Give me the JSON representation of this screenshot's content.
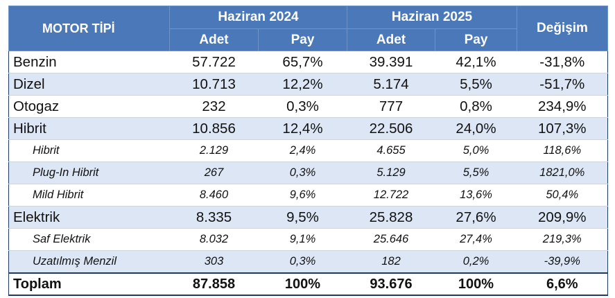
{
  "header": {
    "motor_label": "MOTOR TİPİ",
    "period_2024": "Haziran 2024",
    "period_2025": "Haziran 2025",
    "change_label": "Değişim",
    "adet_label": "Adet",
    "pay_label": "Pay"
  },
  "rows": [
    {
      "label": "Benzin",
      "a2024": "57.722",
      "p2024": "65,7%",
      "a2025": "39.391",
      "p2025": "42,1%",
      "change": "-31,8%"
    },
    {
      "label": "Dizel",
      "a2024": "10.713",
      "p2024": "12,2%",
      "a2025": "5.174",
      "p2025": "5,5%",
      "change": "-51,7%"
    },
    {
      "label": "Otogaz",
      "a2024": "232",
      "p2024": "0,3%",
      "a2025": "777",
      "p2025": "0,8%",
      "change": "234,9%"
    },
    {
      "label": "Hibrit",
      "a2024": "10.856",
      "p2024": "12,4%",
      "a2025": "22.506",
      "p2025": "24,0%",
      "change": "107,3%"
    },
    {
      "label": "Hibrit",
      "a2024": "2.129",
      "p2024": "2,4%",
      "a2025": "4.655",
      "p2025": "5,0%",
      "change": "118,6%"
    },
    {
      "label": "Plug-In Hibrit",
      "a2024": "267",
      "p2024": "0,3%",
      "a2025": "5.129",
      "p2025": "5,5%",
      "change": "1821,0%"
    },
    {
      "label": "Mild Hibrit",
      "a2024": "8.460",
      "p2024": "9,6%",
      "a2025": "12.722",
      "p2025": "13,6%",
      "change": "50,4%"
    },
    {
      "label": "Elektrik",
      "a2024": "8.335",
      "p2024": "9,5%",
      "a2025": "25.828",
      "p2025": "27,6%",
      "change": "209,9%"
    },
    {
      "label": "Saf Elektrik",
      "a2024": "8.032",
      "p2024": "9,1%",
      "a2025": "25.646",
      "p2025": "27,4%",
      "change": "219,3%"
    },
    {
      "label": "Uzatılmış Menzil",
      "a2024": "303",
      "p2024": "0,3%",
      "a2025": "182",
      "p2025": "0,2%",
      "change": "-39,9%"
    }
  ],
  "total": {
    "label": "Toplam",
    "a2024": "87.858",
    "p2024": "100%",
    "a2025": "93.676",
    "p2025": "100%",
    "change": "6,6%"
  }
}
